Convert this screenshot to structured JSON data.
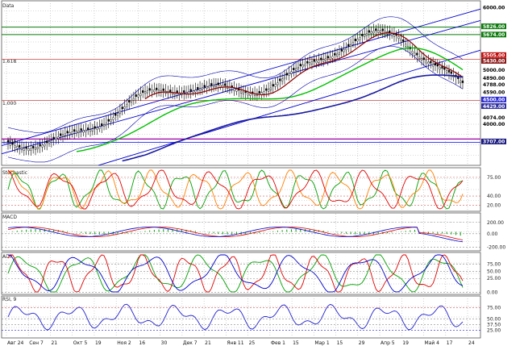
{
  "chart_data": [
    {
      "type": "line",
      "panel": "price",
      "title": "Data",
      "x": [
        "Авг 24",
        "Сен 7",
        "21",
        "Окт 5",
        "19",
        "Ноя 2",
        "16",
        "30",
        "Дек 7",
        "21",
        "Янв 11",
        "25",
        "Фев 1",
        "15",
        "Мар 1",
        "15",
        "29",
        "Апр 5",
        "19",
        "Май 4",
        "17",
        "24"
      ],
      "ylim": [
        0,
        1
      ],
      "grid": true,
      "fib_labels": [
        "1.618",
        "1.000",
        "1.000"
      ],
      "price_tags": [
        {
          "text": "6000.00",
          "color": "#000000",
          "fill": "#ffffff"
        },
        {
          "text": "5826.00",
          "color": "#ffffff",
          "fill": "#0b7a0b"
        },
        {
          "text": "5674.00",
          "color": "#ffffff",
          "fill": "#0b7a0b"
        },
        {
          "text": "5505.00",
          "color": "#ffffff",
          "fill": "#c01010"
        },
        {
          "text": "5430.00",
          "color": "#ffffff",
          "fill": "#8a1a1a"
        },
        {
          "text": "5000.00",
          "color": "#000000",
          "fill": "#ffffff"
        },
        {
          "text": "4890.00",
          "color": "#000000",
          "fill": "#ffffff"
        },
        {
          "text": "4788.00",
          "color": "#000000",
          "fill": "#ffffff"
        },
        {
          "text": "4590.00",
          "color": "#000000",
          "fill": "#ffffff"
        },
        {
          "text": "4500.00",
          "color": "#ffffff",
          "fill": "#2a2ad0"
        },
        {
          "text": "4429.00",
          "color": "#ffffff",
          "fill": "#3030a0"
        },
        {
          "text": "4074.00",
          "color": "#000000",
          "fill": "#ffffff"
        },
        {
          "text": "4000.00",
          "color": "#000000",
          "fill": "#ffffff"
        },
        {
          "text": "3707.00",
          "color": "#ffffff",
          "fill": "#1a1a80"
        }
      ],
      "colors": {
        "candle": "#000000",
        "sma_short": "#8b0000",
        "sma_mid": "#00c000",
        "sma_long": "#1a1aa0",
        "channel": "#0000cc",
        "bands": "#0000aa"
      }
    },
    {
      "type": "line",
      "panel": "stochastic",
      "title": "Stochastic",
      "levels": [
        "75.00",
        "40.00",
        "20.00"
      ],
      "series": [
        {
          "values": [],
          "color": "#00a000"
        },
        {
          "values": [],
          "color": "#ff8000"
        },
        {
          "values": [],
          "color": "#e00000"
        }
      ]
    },
    {
      "type": "bar",
      "panel": "macd",
      "title": "MACD",
      "levels": [
        "200.00",
        "0.00",
        "-200.00"
      ],
      "series": [
        {
          "values": [],
          "color": "#00a000"
        },
        {
          "values": [],
          "color": "#e00000"
        },
        {
          "values": [],
          "color": "#0000cc"
        }
      ]
    },
    {
      "type": "line",
      "panel": "adx",
      "title": "ADX",
      "levels": [
        "75.00",
        "50.00",
        "25.00",
        "0.00"
      ],
      "series": [
        {
          "values": [],
          "color": "#00a000"
        },
        {
          "values": [],
          "color": "#e00000"
        },
        {
          "values": [],
          "color": "#0000cc"
        }
      ]
    },
    {
      "type": "line",
      "panel": "rsi",
      "title": "RSI, 9",
      "levels": [
        "75.00",
        "50.00",
        "37.50",
        "25.00"
      ],
      "series": [
        {
          "values": [],
          "color": "#2020d0"
        }
      ]
    }
  ]
}
